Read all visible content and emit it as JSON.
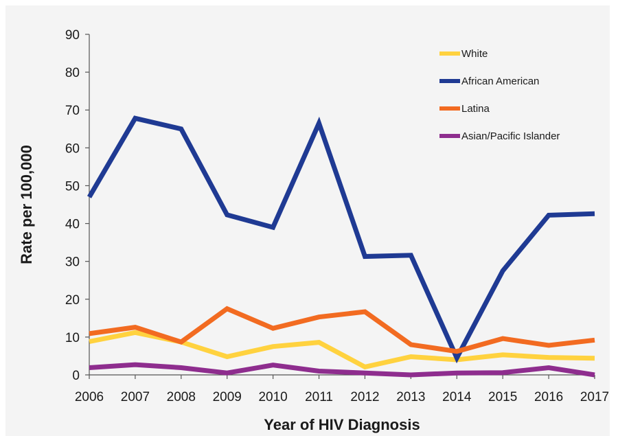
{
  "chart_data": {
    "type": "line",
    "title": "",
    "xlabel": "Year of HIV Diagnosis",
    "ylabel": "Rate per 100,000",
    "x": [
      "2006",
      "2007",
      "2008",
      "2009",
      "2010",
      "2011",
      "2012",
      "2013",
      "2014",
      "2015",
      "2016",
      "2017"
    ],
    "yticks": [
      "0",
      "10",
      "20",
      "30",
      "40",
      "50",
      "60",
      "70",
      "80",
      "90"
    ],
    "ylim": [
      0,
      90
    ],
    "grid": false,
    "legend_position": "top-right",
    "series": [
      {
        "name": "White",
        "color": "#FFD23F",
        "values": [
          8.8,
          11.2,
          8.7,
          4.8,
          7.5,
          8.6,
          2.1,
          4.8,
          4.0,
          5.3,
          4.6,
          4.4
        ]
      },
      {
        "name": "African American",
        "color": "#1F3A93",
        "values": [
          47.0,
          67.8,
          65.0,
          42.3,
          39.0,
          66.5,
          31.3,
          31.6,
          4.5,
          27.5,
          42.2,
          42.6
        ]
      },
      {
        "name": "Latina",
        "color": "#F26B21",
        "values": [
          10.9,
          12.6,
          8.7,
          17.5,
          12.3,
          15.3,
          16.7,
          8.0,
          6.2,
          9.6,
          7.8,
          9.2
        ]
      },
      {
        "name": "Asian/Pacific Islander",
        "color": "#8E2D8E",
        "values": [
          1.9,
          2.7,
          1.9,
          0.5,
          2.6,
          1.0,
          0.5,
          0.0,
          0.5,
          0.6,
          1.9,
          0.0
        ]
      }
    ]
  }
}
